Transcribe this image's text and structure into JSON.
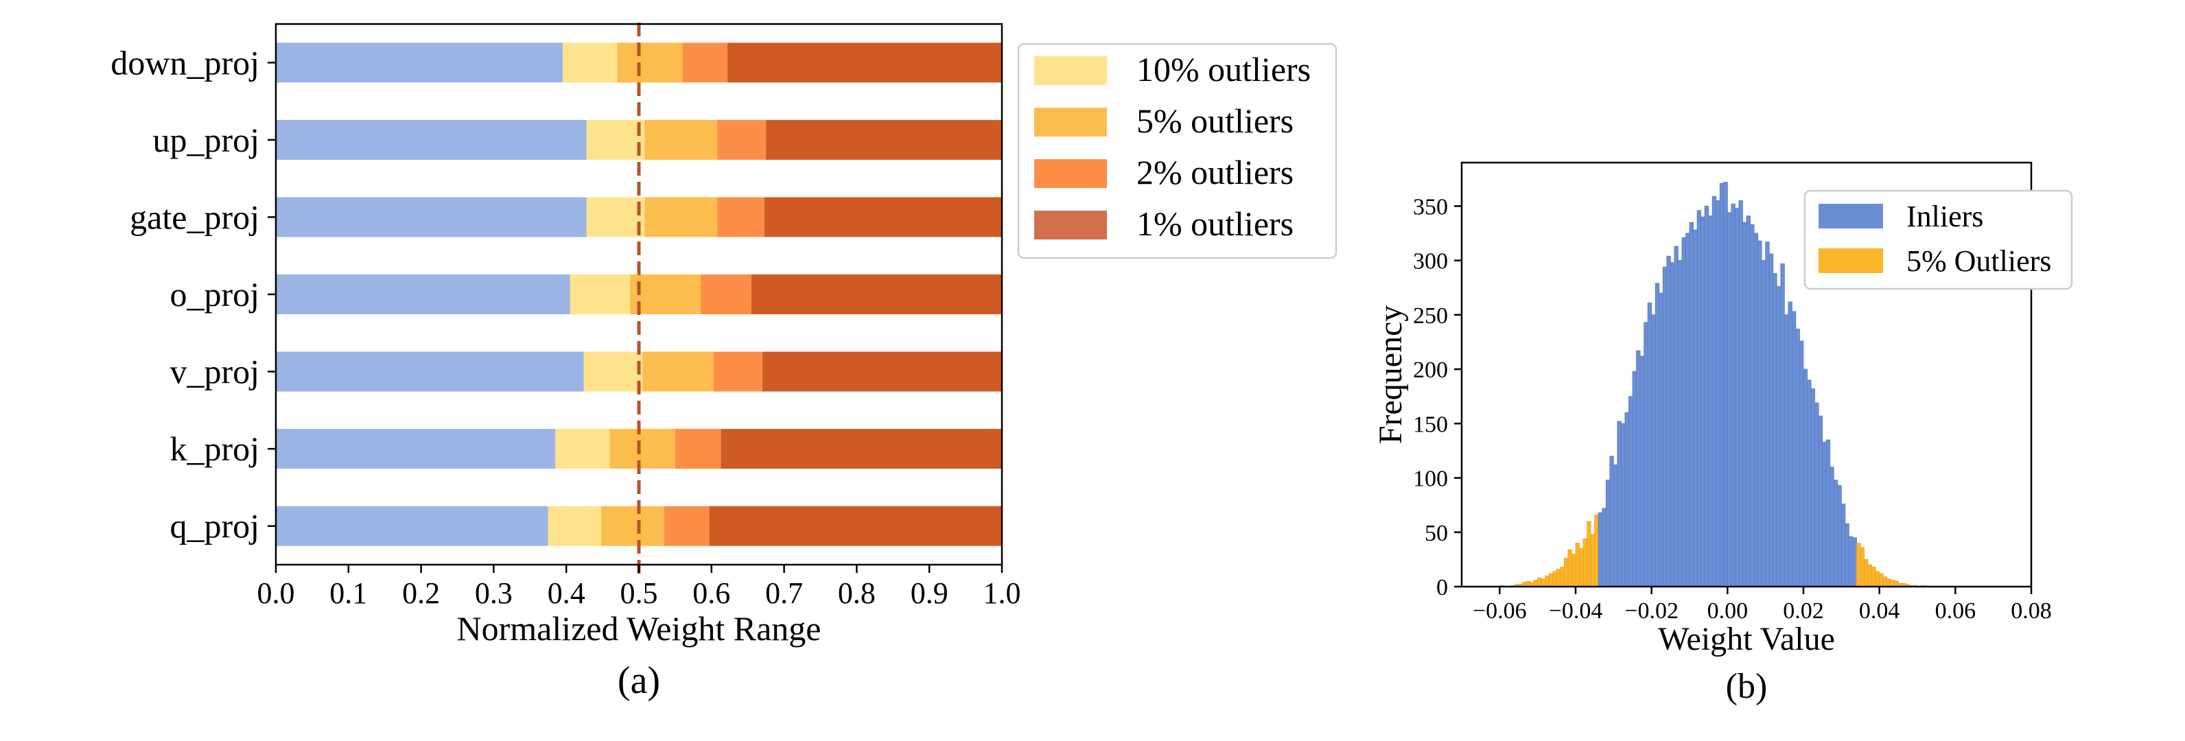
{
  "chart_data": [
    {
      "type": "bar",
      "stacked": true,
      "orientation": "horizontal",
      "categories": [
        "down_proj",
        "up_proj",
        "gate_proj",
        "o_proj",
        "v_proj",
        "k_proj",
        "q_proj"
      ],
      "segment_bounds": [
        [
          0.395,
          0.47,
          0.56,
          0.622,
          1.0
        ],
        [
          0.428,
          0.508,
          0.608,
          0.675,
          1.0
        ],
        [
          0.428,
          0.508,
          0.608,
          0.673,
          1.0
        ],
        [
          0.405,
          0.488,
          0.585,
          0.655,
          1.0
        ],
        [
          0.424,
          0.505,
          0.603,
          0.67,
          1.0
        ],
        [
          0.385,
          0.46,
          0.55,
          0.613,
          1.0
        ],
        [
          0.375,
          0.448,
          0.535,
          0.597,
          1.0
        ]
      ],
      "segment_colors": [
        "#9bb4e3",
        "#ffe38c",
        "#fcbd4e",
        "#fc8e47",
        "#d05a24"
      ],
      "legend": [
        {
          "label": "10% outliers",
          "color": "#ffe38c"
        },
        {
          "label": "5% outliers",
          "color": "#fcbd4e"
        },
        {
          "label": "2% outliers",
          "color": "#fc8e47"
        },
        {
          "label": "1% outliers",
          "color": "#d1704a"
        }
      ],
      "legend_position": "outside-right",
      "xlim": [
        0.0,
        1.0
      ],
      "xticks": [
        "0.0",
        "0.1",
        "0.2",
        "0.3",
        "0.4",
        "0.5",
        "0.6",
        "0.7",
        "0.8",
        "0.9",
        "1.0"
      ],
      "xlabel": "Normalized Weight Range",
      "reference_line": {
        "x": 0.5,
        "style": "dashed",
        "color": "#b5542a"
      },
      "grid": false,
      "caption": "(a)"
    },
    {
      "type": "histogram",
      "bin_start": -0.06,
      "bin_width": 0.001,
      "inlier_range": [
        -0.0335,
        0.0335
      ],
      "counts": [
        1,
        0,
        0,
        1,
        2,
        2,
        4,
        5,
        4,
        6,
        8,
        7,
        10,
        12,
        14,
        16,
        18,
        26,
        34,
        30,
        40,
        35,
        44,
        60,
        48,
        66,
        68,
        72,
        98,
        120,
        112,
        152,
        150,
        160,
        175,
        198,
        217,
        212,
        243,
        261,
        250,
        279,
        270,
        294,
        304,
        298,
        313,
        300,
        321,
        325,
        335,
        328,
        346,
        340,
        350,
        341,
        359,
        355,
        371,
        372,
        344,
        352,
        348,
        355,
        335,
        341,
        333,
        325,
        318,
        300,
        317,
        306,
        288,
        276,
        297,
        250,
        262,
        253,
        237,
        226,
        200,
        190,
        182,
        169,
        157,
        133,
        135,
        110,
        98,
        93,
        76,
        58,
        46,
        45,
        40,
        36,
        25,
        20,
        18,
        14,
        12,
        9,
        7,
        6,
        5,
        3,
        3,
        2,
        1,
        1,
        0,
        1
      ],
      "series": [
        {
          "name": "Inliers",
          "color": "#6b8fd4"
        },
        {
          "name": "5% Outliers",
          "color": "#fbb52b"
        }
      ],
      "legend_position": "upper-right",
      "xlim": [
        -0.07,
        0.08
      ],
      "ylim": [
        0,
        390
      ],
      "xticks": [
        "−0.06",
        "−0.04",
        "−0.02",
        "0.00",
        "0.02",
        "0.04",
        "0.06",
        "0.08"
      ],
      "yticks": [
        "0",
        "50",
        "100",
        "150",
        "200",
        "250",
        "300",
        "350"
      ],
      "xlabel": "Weight Value",
      "ylabel": "Frequency",
      "grid": false,
      "caption": "(b)"
    }
  ]
}
